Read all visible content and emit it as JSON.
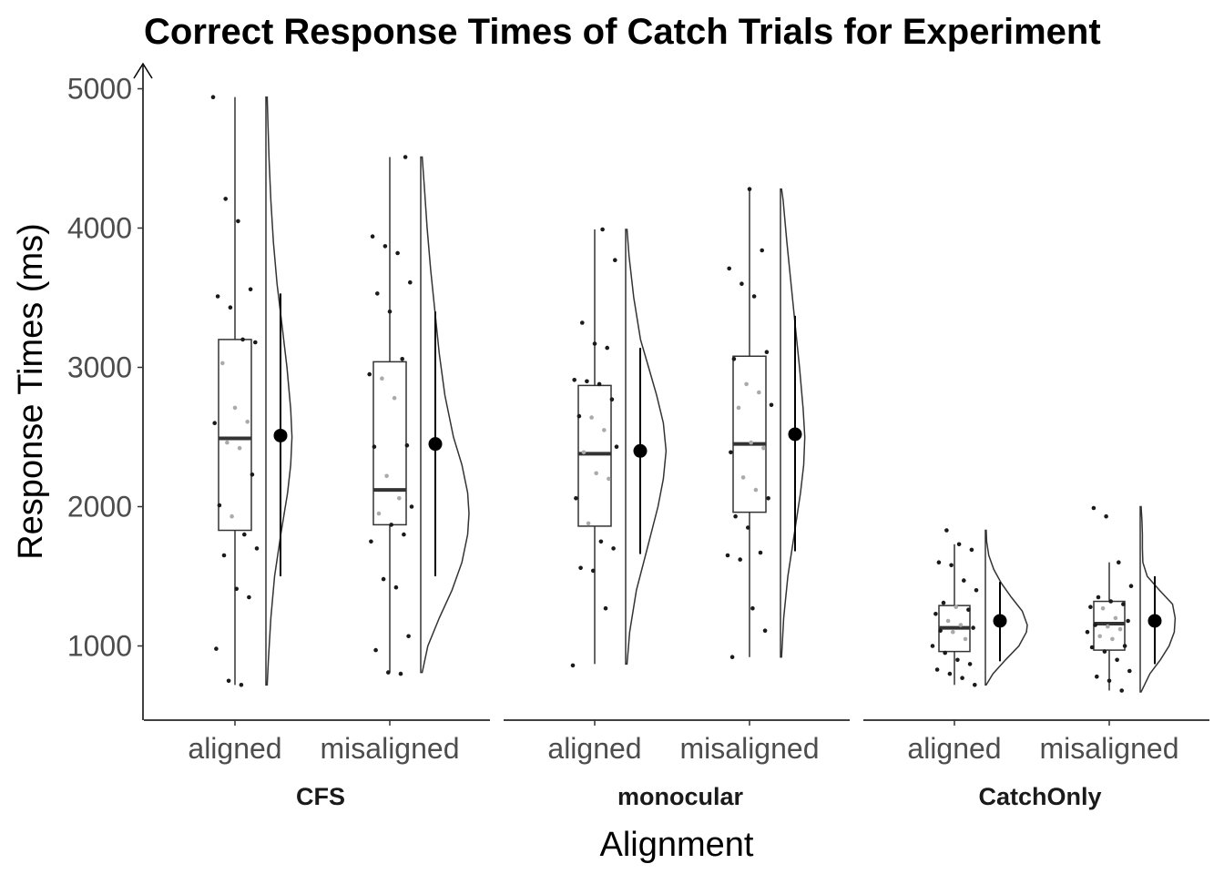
{
  "chart_data": {
    "type": "raincloud",
    "title": "Correct Response Times of Catch Trials for Experiment",
    "xlabel": "Alignment",
    "ylabel": "Response Times (ms)",
    "ylim": [
      470,
      5100
    ],
    "y_ticks": [
      1000,
      2000,
      3000,
      4000,
      5000
    ],
    "categories": [
      "aligned",
      "misaligned"
    ],
    "facets": [
      {
        "label": "CFS",
        "groups": [
          {
            "category": "aligned",
            "box": {
              "q1": 1830,
              "median": 2490,
              "q3": 3200,
              "whisker_low": 720,
              "whisker_high": 4940
            },
            "mean": 2510,
            "ci": [
              1500,
              3530
            ],
            "points": [
              4940,
              4210,
              4050,
              3560,
              3510,
              3430,
              3200,
              3180,
              3030,
              2710,
              2610,
              2600,
              2460,
              2420,
              2230,
              2010,
              1930,
              1800,
              1700,
              1650,
              1410,
              1350,
              980,
              750,
              720
            ],
            "density": [
              [
                720,
                0.02
              ],
              [
                900,
                0.04
              ],
              [
                1200,
                0.08
              ],
              [
                1500,
                0.14
              ],
              [
                1800,
                0.24
              ],
              [
                2100,
                0.35
              ],
              [
                2300,
                0.4
              ],
              [
                2500,
                0.42
              ],
              [
                2700,
                0.4
              ],
              [
                3000,
                0.34
              ],
              [
                3300,
                0.26
              ],
              [
                3600,
                0.18
              ],
              [
                3900,
                0.12
              ],
              [
                4200,
                0.08
              ],
              [
                4500,
                0.05
              ],
              [
                4800,
                0.03
              ],
              [
                4940,
                0.02
              ]
            ]
          },
          {
            "category": "misaligned",
            "box": {
              "q1": 1870,
              "median": 2120,
              "q3": 3040,
              "whisker_low": 810,
              "whisker_high": 4510
            },
            "mean": 2450,
            "ci": [
              1500,
              3400
            ],
            "points": [
              4510,
              3940,
              3870,
              3820,
              3610,
              3530,
              3400,
              3060,
              2950,
              2920,
              2780,
              2440,
              2430,
              2220,
              2060,
              2000,
              1950,
              1870,
              1800,
              1750,
              1480,
              1420,
              1070,
              970,
              810,
              800
            ],
            "density": [
              [
                810,
                0.02
              ],
              [
                1000,
                0.1
              ],
              [
                1200,
                0.26
              ],
              [
                1400,
                0.44
              ],
              [
                1600,
                0.58
              ],
              [
                1800,
                0.66
              ],
              [
                1950,
                0.68
              ],
              [
                2100,
                0.66
              ],
              [
                2300,
                0.58
              ],
              [
                2500,
                0.46
              ],
              [
                2800,
                0.34
              ],
              [
                3100,
                0.26
              ],
              [
                3400,
                0.2
              ],
              [
                3700,
                0.14
              ],
              [
                4000,
                0.09
              ],
              [
                4300,
                0.05
              ],
              [
                4510,
                0.02
              ]
            ]
          }
        ]
      },
      {
        "label": "monocular",
        "groups": [
          {
            "category": "aligned",
            "box": {
              "q1": 1860,
              "median": 2380,
              "q3": 2870,
              "whisker_low": 870,
              "whisker_high": 3990
            },
            "mean": 2400,
            "ci": [
              1660,
              3140
            ],
            "points": [
              3990,
              3770,
              3320,
              3170,
              3140,
              2910,
              2900,
              2880,
              2770,
              2650,
              2640,
              2550,
              2430,
              2390,
              2240,
              2200,
              2060,
              1880,
              1750,
              1700,
              1560,
              1540,
              1270,
              860
            ],
            "density": [
              [
                870,
                0.02
              ],
              [
                1100,
                0.06
              ],
              [
                1400,
                0.16
              ],
              [
                1700,
                0.32
              ],
              [
                2000,
                0.48
              ],
              [
                2200,
                0.56
              ],
              [
                2400,
                0.6
              ],
              [
                2600,
                0.56
              ],
              [
                2800,
                0.46
              ],
              [
                3000,
                0.34
              ],
              [
                3200,
                0.22
              ],
              [
                3500,
                0.12
              ],
              [
                3800,
                0.05
              ],
              [
                3990,
                0.02
              ]
            ]
          },
          {
            "category": "misaligned",
            "box": {
              "q1": 1960,
              "median": 2450,
              "q3": 3080,
              "whisker_low": 920,
              "whisker_high": 4280
            },
            "mean": 2520,
            "ci": [
              1680,
              3370
            ],
            "points": [
              4280,
              3840,
              3710,
              3600,
              3510,
              3110,
              3060,
              2880,
              2820,
              2730,
              2710,
              2460,
              2420,
              2390,
              2210,
              2120,
              2060,
              1930,
              1850,
              1670,
              1650,
              1620,
              1270,
              1110,
              920
            ],
            "density": [
              [
                920,
                0.02
              ],
              [
                1200,
                0.06
              ],
              [
                1500,
                0.14
              ],
              [
                1800,
                0.26
              ],
              [
                2100,
                0.38
              ],
              [
                2300,
                0.44
              ],
              [
                2500,
                0.46
              ],
              [
                2700,
                0.43
              ],
              [
                3000,
                0.36
              ],
              [
                3300,
                0.28
              ],
              [
                3600,
                0.2
              ],
              [
                3900,
                0.12
              ],
              [
                4200,
                0.05
              ],
              [
                4280,
                0.02
              ]
            ]
          }
        ]
      },
      {
        "label": "CatchOnly",
        "groups": [
          {
            "category": "aligned",
            "box": {
              "q1": 960,
              "median": 1130,
              "q3": 1290,
              "whisker_low": 720,
              "whisker_high": 1730
            },
            "mean": 1180,
            "ci": [
              890,
              1460
            ],
            "points": [
              1830,
              1730,
              1690,
              1600,
              1580,
              1470,
              1400,
              1310,
              1280,
              1260,
              1230,
              1180,
              1150,
              1130,
              1110,
              1100,
              1050,
              1000,
              950,
              900,
              870,
              830,
              800,
              770,
              720
            ],
            "density": [
              [
                720,
                0.02
              ],
              [
                800,
                0.18
              ],
              [
                900,
                0.48
              ],
              [
                1000,
                0.8
              ],
              [
                1100,
                0.98
              ],
              [
                1150,
                1.0
              ],
              [
                1250,
                0.88
              ],
              [
                1350,
                0.62
              ],
              [
                1450,
                0.38
              ],
              [
                1550,
                0.2
              ],
              [
                1650,
                0.08
              ],
              [
                1750,
                0.03
              ],
              [
                1830,
                0.02
              ]
            ]
          },
          {
            "category": "misaligned",
            "box": {
              "q1": 970,
              "median": 1160,
              "q3": 1320,
              "whisker_low": 680,
              "whisker_high": 1600
            },
            "mean": 1180,
            "ci": [
              870,
              1500
            ],
            "points": [
              1990,
              1930,
              1600,
              1430,
              1350,
              1320,
              1300,
              1280,
              1270,
              1200,
              1180,
              1150,
              1140,
              1120,
              1100,
              1070,
              1050,
              1000,
              990,
              960,
              900,
              820,
              780,
              750,
              680
            ],
            "density": [
              [
                670,
                0.02
              ],
              [
                800,
                0.22
              ],
              [
                900,
                0.46
              ],
              [
                1000,
                0.66
              ],
              [
                1100,
                0.78
              ],
              [
                1200,
                0.8
              ],
              [
                1300,
                0.74
              ],
              [
                1400,
                0.44
              ],
              [
                1500,
                0.16
              ],
              [
                1600,
                0.06
              ],
              [
                1700,
                0.05
              ],
              [
                1800,
                0.05
              ],
              [
                1900,
                0.04
              ],
              [
                2000,
                0.02
              ]
            ]
          }
        ]
      }
    ]
  }
}
